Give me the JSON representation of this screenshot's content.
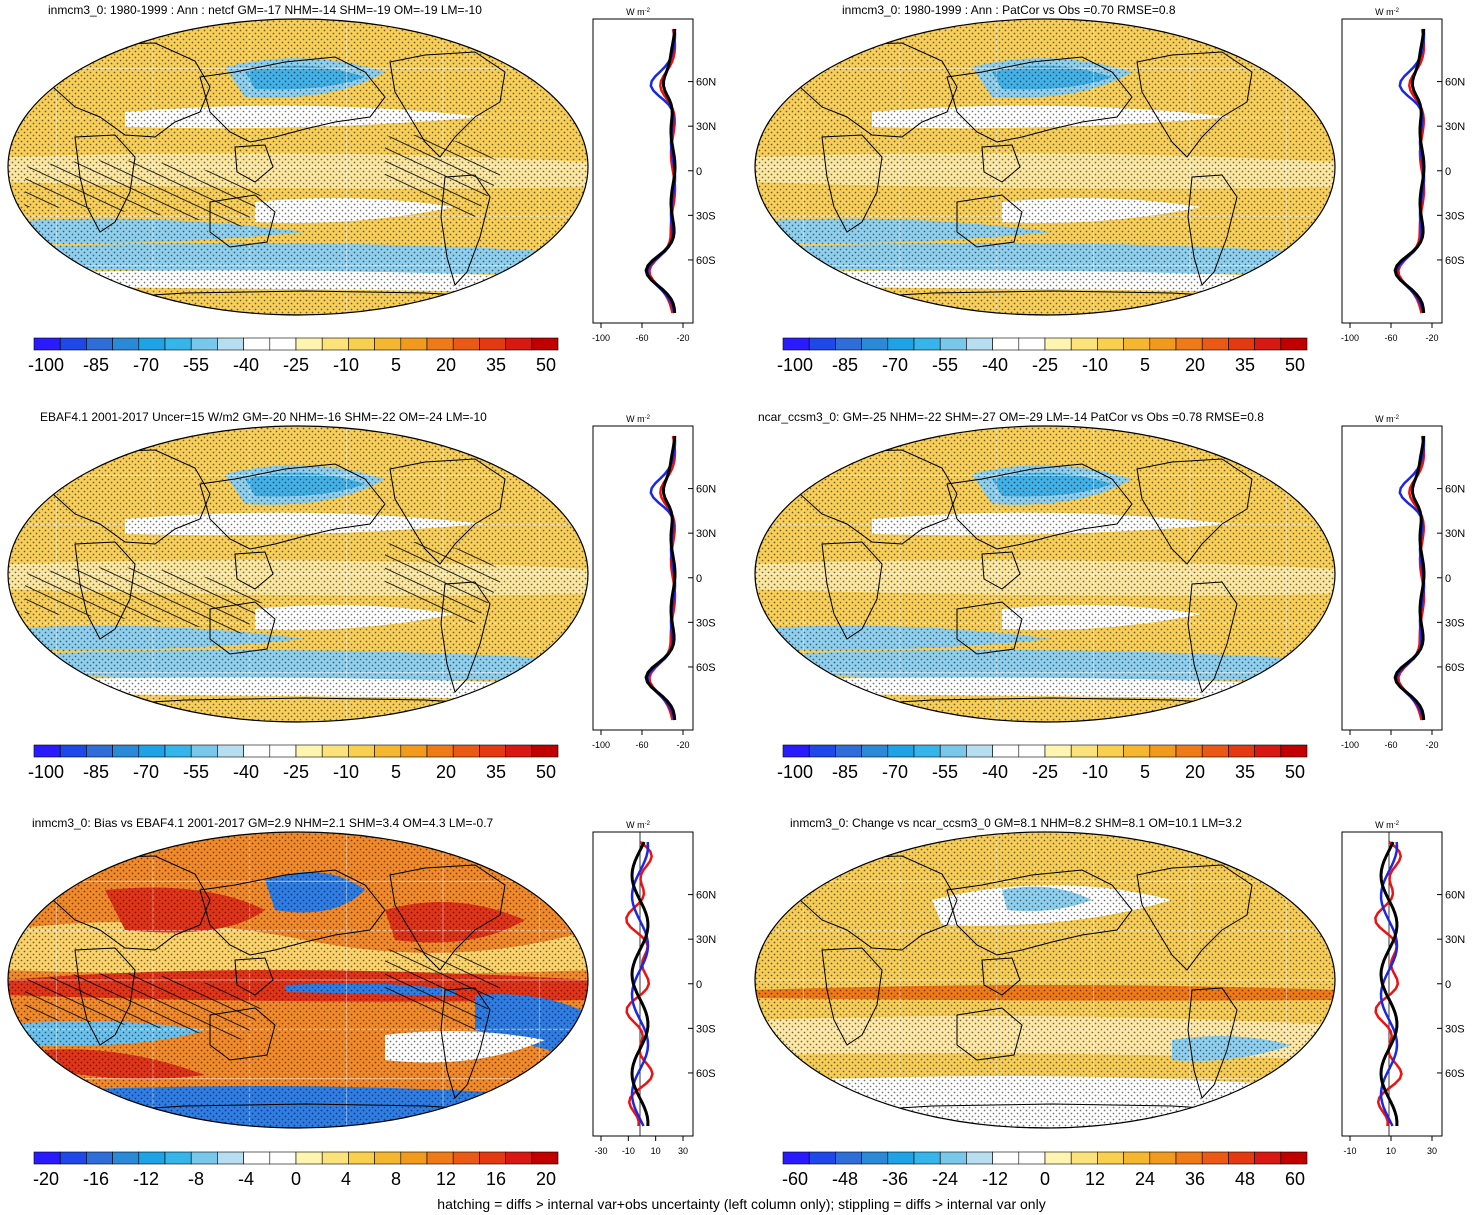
{
  "panels": [
    {
      "id": "p1",
      "title": "inmcm3_0: 1980-1999 : Ann : netcf GM=-17 NHM=-14 SHM=-19 OM=-19 LM=-10",
      "colorbar_labels": [
        "-100",
        "-85",
        "-70",
        "-55",
        "-40",
        "-25",
        "-10",
        "5",
        "20",
        "35",
        "50"
      ],
      "profile_unit": "W m",
      "profile_unit_exp": "-2",
      "profile_xticks": [
        "-100",
        "-60",
        "-20"
      ],
      "profile_lat_labels": [
        "60N",
        "30N",
        "0",
        "30S",
        "60S"
      ],
      "palette": "cf",
      "hatched": true
    },
    {
      "id": "p2",
      "title": "inmcm3_0: 1980-1999 : Ann : PatCor vs Obs =0.70 RMSE=0.8",
      "colorbar_labels": [
        "-100",
        "-85",
        "-70",
        "-55",
        "-40",
        "-25",
        "-10",
        "5",
        "20",
        "35",
        "50"
      ],
      "profile_unit": "W m",
      "profile_unit_exp": "-2",
      "profile_xticks": [
        "-100",
        "-60",
        "-20"
      ],
      "profile_lat_labels": [
        "60N",
        "30N",
        "0",
        "30S",
        "60S"
      ],
      "palette": "cf",
      "hatched": false
    },
    {
      "id": "p3",
      "title": "EBAF4.1 2001-2017 Uncer=15 W/m2 GM=-20 NHM=-16 SHM=-22 OM=-24 LM=-10",
      "colorbar_labels": [
        "-100",
        "-85",
        "-70",
        "-55",
        "-40",
        "-25",
        "-10",
        "5",
        "20",
        "35",
        "50"
      ],
      "profile_unit": "W m",
      "profile_unit_exp": "-2",
      "profile_xticks": [
        "-100",
        "-60",
        "-20"
      ],
      "profile_lat_labels": [
        "60N",
        "30N",
        "0",
        "30S",
        "60S"
      ],
      "palette": "cf",
      "hatched": true
    },
    {
      "id": "p4",
      "title": "ncar_ccsm3_0: GM=-25 NHM=-22 SHM=-27 OM=-29 LM=-14 PatCor vs Obs =0.78 RMSE=0.8",
      "colorbar_labels": [
        "-100",
        "-85",
        "-70",
        "-55",
        "-40",
        "-25",
        "-10",
        "5",
        "20",
        "35",
        "50"
      ],
      "profile_unit": "W m",
      "profile_unit_exp": "-2",
      "profile_xticks": [
        "-100",
        "-60",
        "-20"
      ],
      "profile_lat_labels": [
        "60N",
        "30N",
        "0",
        "30S",
        "60S"
      ],
      "palette": "cf",
      "hatched": false
    },
    {
      "id": "p5",
      "title": "inmcm3_0: Bias vs EBAF4.1 2001-2017 GM=2.9 NHM=2.1 SHM=3.4 OM=4.3 LM=-0.7",
      "colorbar_labels": [
        "-20",
        "-16",
        "-12",
        "-8",
        "-4",
        "0",
        "4",
        "8",
        "12",
        "16",
        "20"
      ],
      "profile_unit": "W m",
      "profile_unit_exp": "-2",
      "profile_xticks": [
        "-30",
        "-10",
        "10",
        "30"
      ],
      "profile_lat_labels": [
        "60N",
        "30N",
        "0",
        "30S",
        "60S"
      ],
      "palette": "bias",
      "hatched": true
    },
    {
      "id": "p6",
      "title": "inmcm3_0: Change vs ncar_ccsm3_0 GM=8.1 NHM=8.2 SHM=8.1 OM=10.1 LM=3.2",
      "colorbar_labels": [
        "-60",
        "-48",
        "-36",
        "-24",
        "-12",
        "0",
        "12",
        "24",
        "36",
        "48",
        "60"
      ],
      "profile_unit": "W m",
      "profile_unit_exp": "-2",
      "profile_xticks": [
        "-10",
        "10",
        "30"
      ],
      "profile_lat_labels": [
        "60N",
        "30N",
        "0",
        "30S",
        "60S"
      ],
      "palette": "change",
      "hatched": false
    }
  ],
  "colors": {
    "cbar": [
      "#2a1aff",
      "#1f48e8",
      "#2f6ed8",
      "#2a8ad8",
      "#1fa2e6",
      "#35b5ea",
      "#79c8ec",
      "#b6def0",
      "#ffffff",
      "#ffffff",
      "#fff4b0",
      "#fbe27a",
      "#f8cf4e",
      "#f5b730",
      "#f29a1e",
      "#ef7a18",
      "#ea5a14",
      "#e43a12",
      "#d81812",
      "#c00000"
    ],
    "series": {
      "black": "#000000",
      "blue": "#1a28e6",
      "red": "#ee1111"
    }
  },
  "footer": "hatching = diffs > internal var+obs uncertainty (left column only); stippling = diffs > internal var only"
}
